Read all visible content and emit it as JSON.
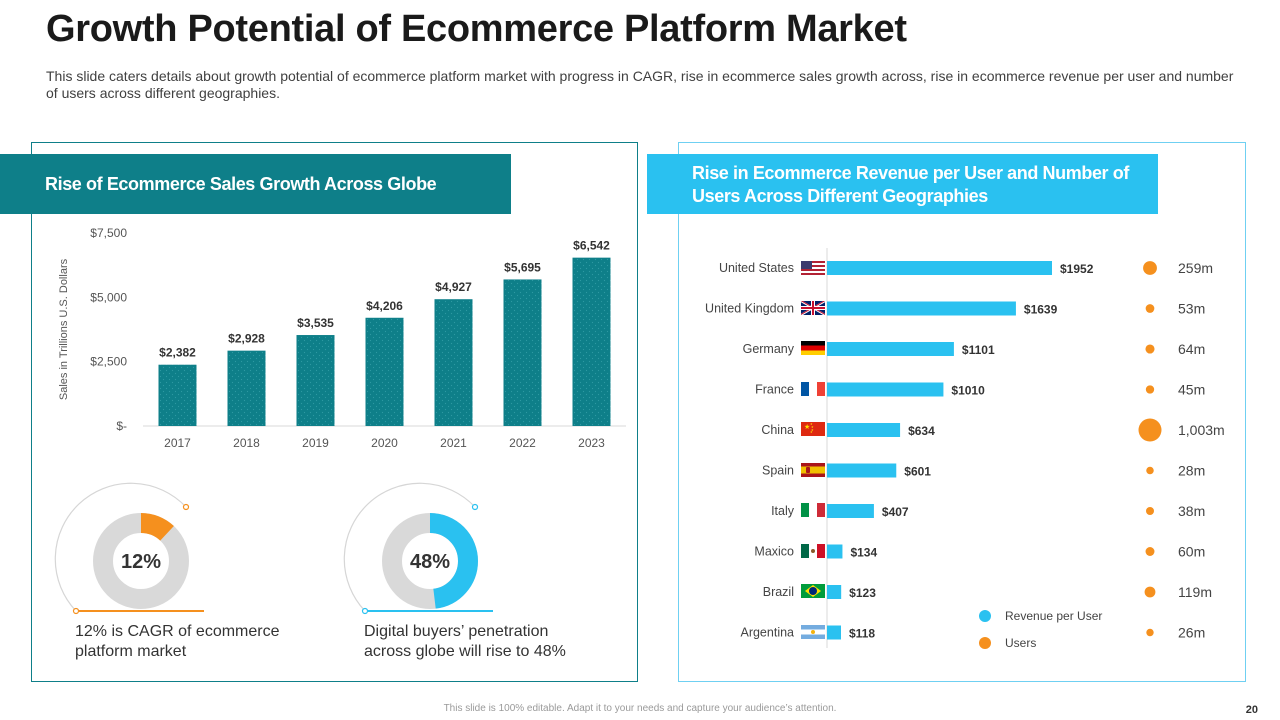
{
  "title": "Growth Potential of Ecommerce Platform Market",
  "subtitle": "This slide caters details about growth potential of ecommerce platform market with progress in CAGR, rise in ecommerce sales growth across, rise in ecommerce revenue per user and number of users across different geographies.",
  "left_panel": {
    "banner": "Rise of Ecommerce Sales Growth Across Globe",
    "kpis": [
      {
        "value": "12%",
        "percent": 12,
        "color": "#f5901e",
        "caption": "12% is CAGR of ecommerce platform market"
      },
      {
        "value": "48%",
        "percent": 48,
        "color": "#2ac1f0",
        "caption": "Digital buyers’ penetration across globe will rise to 48%"
      }
    ]
  },
  "right_panel": {
    "banner": "Rise in Ecommerce Revenue per User and Number of Users Across Different Geographies"
  },
  "chart_data": [
    {
      "type": "bar",
      "title": "Rise of Ecommerce Sales Growth Across Globe",
      "xlabel": "",
      "ylabel": "Sales in Trillions U.S. Dollars",
      "categories": [
        "2017",
        "2018",
        "2019",
        "2020",
        "2021",
        "2022",
        "2023"
      ],
      "values": [
        2382,
        2928,
        3535,
        4206,
        4927,
        5695,
        6542
      ],
      "data_labels": [
        "$2,382",
        "$2,928",
        "$3,535",
        "$4,206",
        "$4,927",
        "$5,695",
        "$6,542"
      ],
      "yticks": [
        0,
        2500,
        5000,
        7500
      ],
      "ytick_labels": [
        "$-",
        "$2,500",
        "$5,000",
        "$7,500"
      ],
      "ylim": [
        0,
        7500
      ],
      "grid": false,
      "bar_color": "#0e7f89"
    },
    {
      "type": "bar",
      "orientation": "horizontal",
      "title": "Rise in Ecommerce Revenue per User and Number of Users Across Different Geographies",
      "categories": [
        "United States",
        "United Kingdom",
        "Germany",
        "France",
        "China",
        "Spain",
        "Italy",
        "Maxico",
        "Brazil",
        "Argentina"
      ],
      "series": [
        {
          "name": "Revenue  per User",
          "color": "#2ac1f0",
          "values": [
            1952,
            1639,
            1101,
            1010,
            634,
            601,
            407,
            134,
            123,
            118
          ],
          "data_labels": [
            "$1952",
            "$1639",
            "$1101",
            "$1010",
            "$634",
            "$601",
            "$407",
            "$134",
            "$123",
            "$118"
          ]
        },
        {
          "name": "Users",
          "color": "#f5901e",
          "values": [
            259,
            53,
            64,
            45,
            1003,
            28,
            38,
            60,
            119,
            26
          ],
          "data_labels": [
            "259m",
            "53m",
            "64m",
            "45m",
            "1,003m",
            "28m",
            "38m",
            "60m",
            "119m",
            "26m"
          ]
        }
      ],
      "legend": "bottom-right",
      "flags": [
        "flag-usa",
        "flag-uk",
        "flag-germany",
        "flag-france",
        "flag-china",
        "flag-spain",
        "flag-italy",
        "flag-mexico",
        "flag-brazil",
        "flag-argentina"
      ]
    }
  ],
  "footer": {
    "note": "This slide is 100% editable. Adapt it to your needs and capture your audience’s attention.",
    "page_number": "20"
  }
}
